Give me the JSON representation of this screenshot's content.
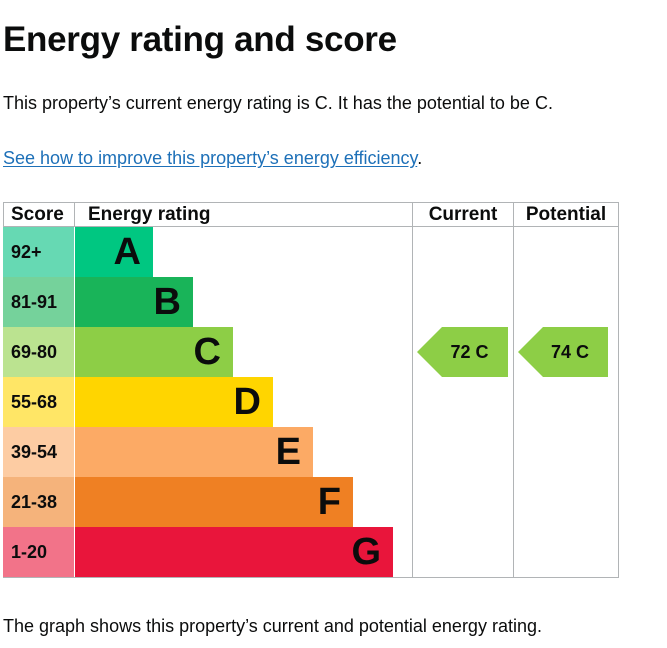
{
  "page": {
    "title": "Energy rating and score",
    "summary": "This property’s current energy rating is C. It has the potential to be C.",
    "link_text": "See how to improve this property’s energy efficiency",
    "link_suffix": ".",
    "footer": "The graph shows this property’s current and potential energy rating."
  },
  "table": {
    "headers": {
      "score": "Score",
      "energy_rating": "Energy rating",
      "current": "Current",
      "potential": "Potential"
    },
    "bands": [
      {
        "range": "92+",
        "letter": "A",
        "color": "#00c781",
        "score_bg": "#66d9b3"
      },
      {
        "range": "81-91",
        "letter": "B",
        "color": "#19b459",
        "score_bg": "#75d29b"
      },
      {
        "range": "69-80",
        "letter": "C",
        "color": "#8dce46",
        "score_bg": "#bbe390"
      },
      {
        "range": "55-68",
        "letter": "D",
        "color": "#ffd500",
        "score_bg": "#ffe666"
      },
      {
        "range": "39-54",
        "letter": "E",
        "color": "#fcaa65",
        "score_bg": "#fdcca3"
      },
      {
        "range": "21-38",
        "letter": "F",
        "color": "#ef8023",
        "score_bg": "#f5b37b"
      },
      {
        "range": "1-20",
        "letter": "G",
        "color": "#e9153b",
        "score_bg": "#f27389"
      }
    ],
    "current": {
      "label": "72 C",
      "band": "C",
      "color": "#8dce46"
    },
    "potential": {
      "label": "74 C",
      "band": "C",
      "color": "#8dce46"
    }
  }
}
